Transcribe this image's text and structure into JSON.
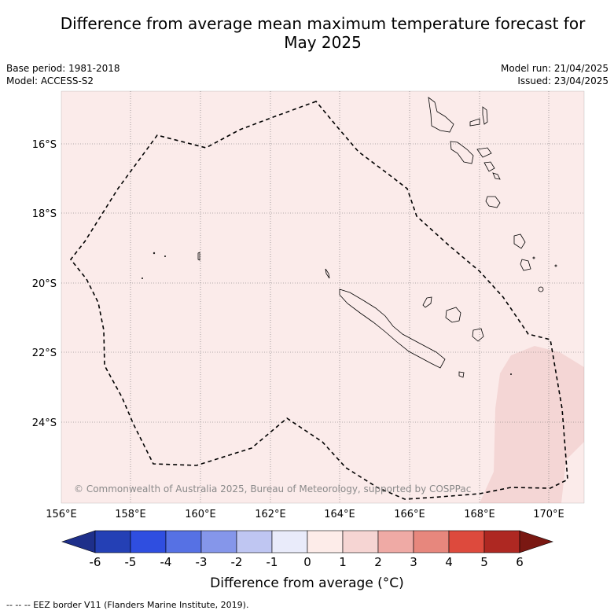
{
  "title": "Difference from average mean maximum temperature forecast for May 2025",
  "title_line1": "Difference from average mean maximum temperature forecast for",
  "title_line2": "May 2025",
  "base_period": "Base period: 1981-2018",
  "model": "Model: ACCESS-S2",
  "model_run": "Model run: 21/04/2025",
  "issued": "Issued: 23/04/2025",
  "copyright": "© Commonwealth of Australia 2025, Bureau of Meteorology, supported by COSPPac",
  "x_ticks": [
    "156°E",
    "158°E",
    "160°E",
    "162°E",
    "164°E",
    "166°E",
    "168°E",
    "170°E"
  ],
  "y_ticks": [
    "16°S",
    "18°S",
    "20°S",
    "22°S",
    "24°S"
  ],
  "colorbar": {
    "label": "Difference from average (°C)",
    "ticks": [
      "-6",
      "-5",
      "-4",
      "-3",
      "-2",
      "-1",
      "0",
      "1",
      "2",
      "3",
      "4",
      "5",
      "6"
    ],
    "colors": [
      "#1e2f8a",
      "#2440b5",
      "#2f4ee0",
      "#5671e4",
      "#8596ea",
      "#bfc6f2",
      "#e9ebfa",
      "#fdece9",
      "#f6d5d3",
      "#efaaa5",
      "#e7877d",
      "#dd4a3d",
      "#ae2822",
      "#7a1812"
    ]
  },
  "footer": "--  --  -- EEZ border V11 (Flanders Marine Institute, 2019).",
  "legend_colors": {
    "background": "#fbebea",
    "warm_patch": "#f4d6d5"
  }
}
